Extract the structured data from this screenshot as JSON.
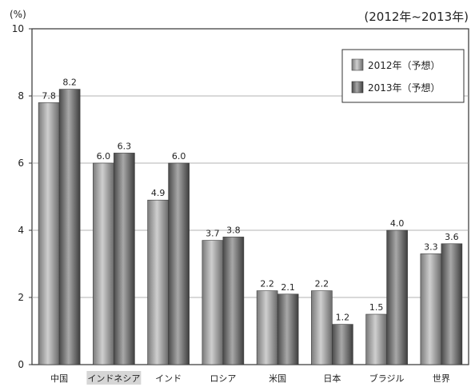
{
  "chart_data": {
    "type": "bar",
    "title": "",
    "subtitle": "(2012年~2013年)",
    "unit_label": "(%)",
    "xlabel": "",
    "ylabel": "",
    "ylim": [
      0,
      10
    ],
    "yticks": [
      0,
      2,
      4,
      6,
      8,
      10
    ],
    "grid": true,
    "legend_position": "top-right",
    "categories": [
      "中国",
      "インドネシア",
      "インド",
      "ロシア",
      "米国",
      "日本",
      "ブラジル",
      "世界"
    ],
    "highlighted_category": "インドネシア",
    "series": [
      {
        "name": "2012年（予想）",
        "values": [
          7.8,
          6.0,
          4.9,
          3.7,
          2.2,
          2.2,
          1.5,
          3.3
        ],
        "color": "#9a9a9a"
      },
      {
        "name": "2013年（予想）",
        "values": [
          8.2,
          6.3,
          6.0,
          3.8,
          2.1,
          1.2,
          4.0,
          3.6
        ],
        "color": "#6e6e6e"
      }
    ]
  }
}
